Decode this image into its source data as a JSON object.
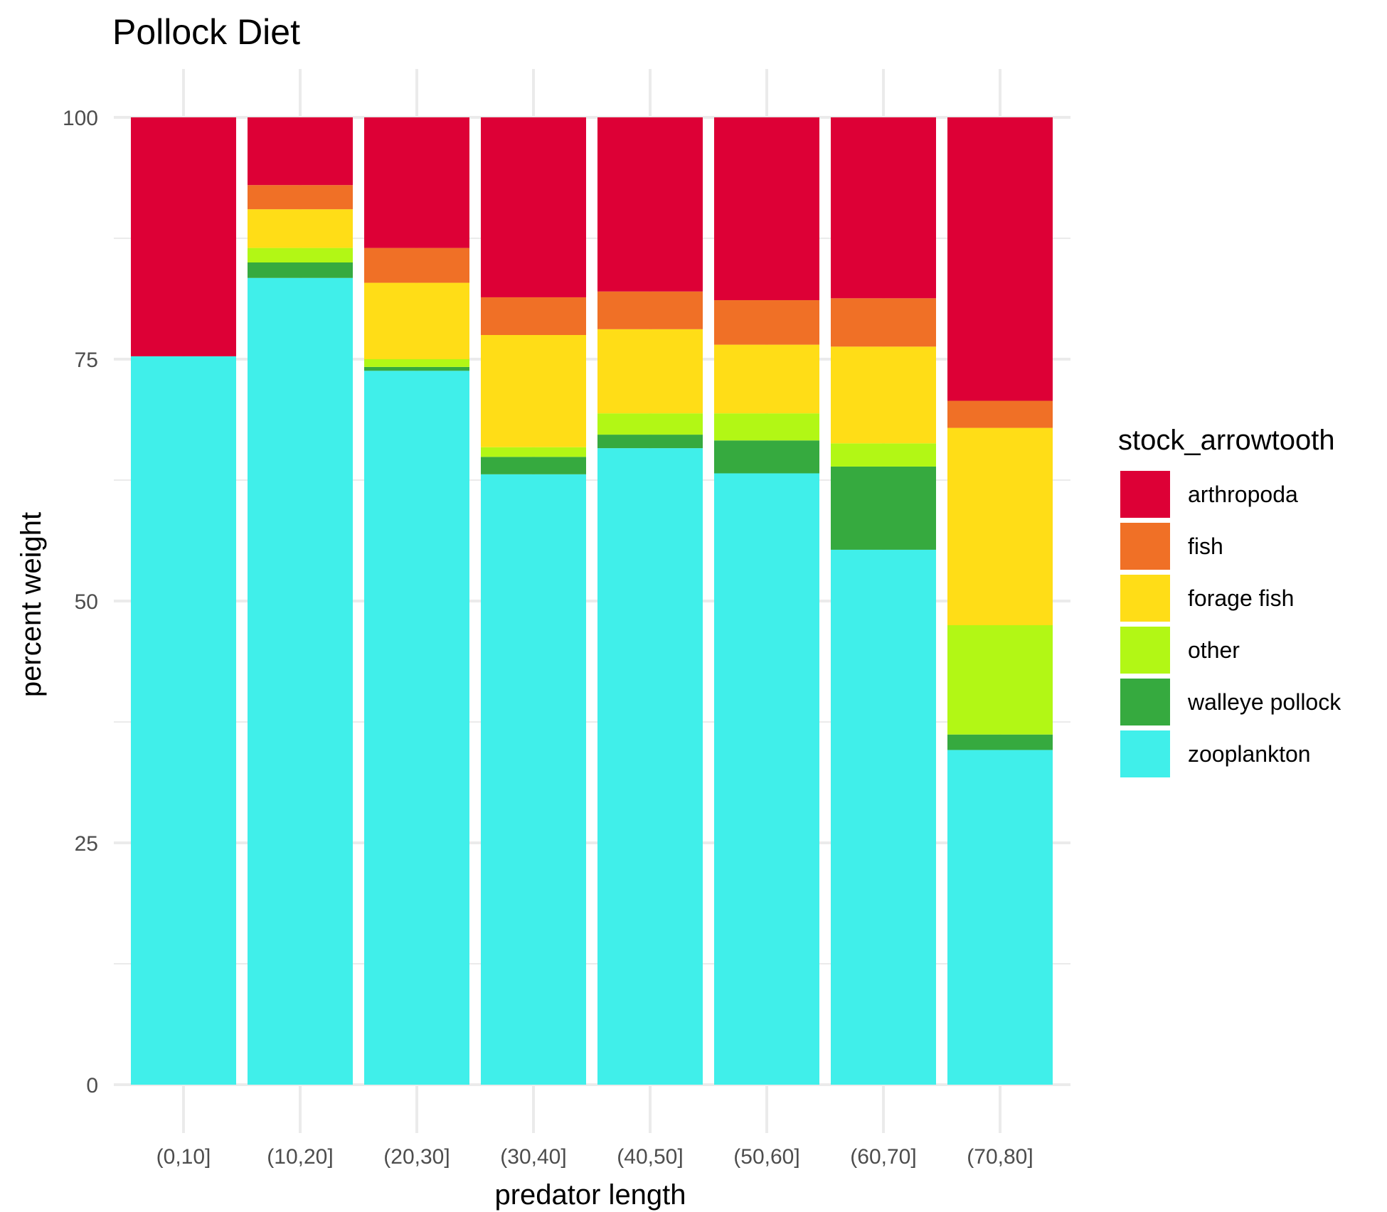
{
  "chart_data": {
    "type": "bar",
    "stacked": true,
    "title": "Pollock Diet",
    "xlabel": "predator length",
    "ylabel": "percent weight",
    "ylim": [
      0,
      100
    ],
    "yticks": [
      0,
      25,
      50,
      75,
      100
    ],
    "grid": true,
    "legend": {
      "title": "stock_arrowtooth",
      "position": "right"
    },
    "categories": [
      "(0,10]",
      "(10,20]",
      "(20,30]",
      "(30,40]",
      "(40,50]",
      "(50,60]",
      "(60,70]",
      "(70,80]"
    ],
    "series": [
      {
        "name": "zooplankton",
        "color": "#40EFEA",
        "values": [
          75.3,
          83.4,
          73.8,
          63.1,
          65.8,
          63.2,
          55.3,
          34.6
        ]
      },
      {
        "name": "walleye pollock",
        "color": "#36AA3F",
        "values": [
          0,
          1.6,
          0.4,
          1.8,
          1.4,
          3.4,
          8.6,
          1.6
        ]
      },
      {
        "name": "other",
        "color": "#B2F715",
        "values": [
          0,
          1.5,
          0.8,
          1.0,
          2.2,
          2.8,
          2.4,
          11.3
        ]
      },
      {
        "name": "forage fish",
        "color": "#FFDD17",
        "values": [
          0,
          4.0,
          7.9,
          11.6,
          8.7,
          7.1,
          10.0,
          20.4
        ]
      },
      {
        "name": "fish",
        "color": "#F07026",
        "values": [
          0,
          2.5,
          3.6,
          3.9,
          3.9,
          4.6,
          5.0,
          2.8
        ]
      },
      {
        "name": "arthropoda",
        "color": "#DD0036",
        "values": [
          24.7,
          7.0,
          13.5,
          18.6,
          18.0,
          18.9,
          18.7,
          29.3
        ]
      }
    ]
  }
}
